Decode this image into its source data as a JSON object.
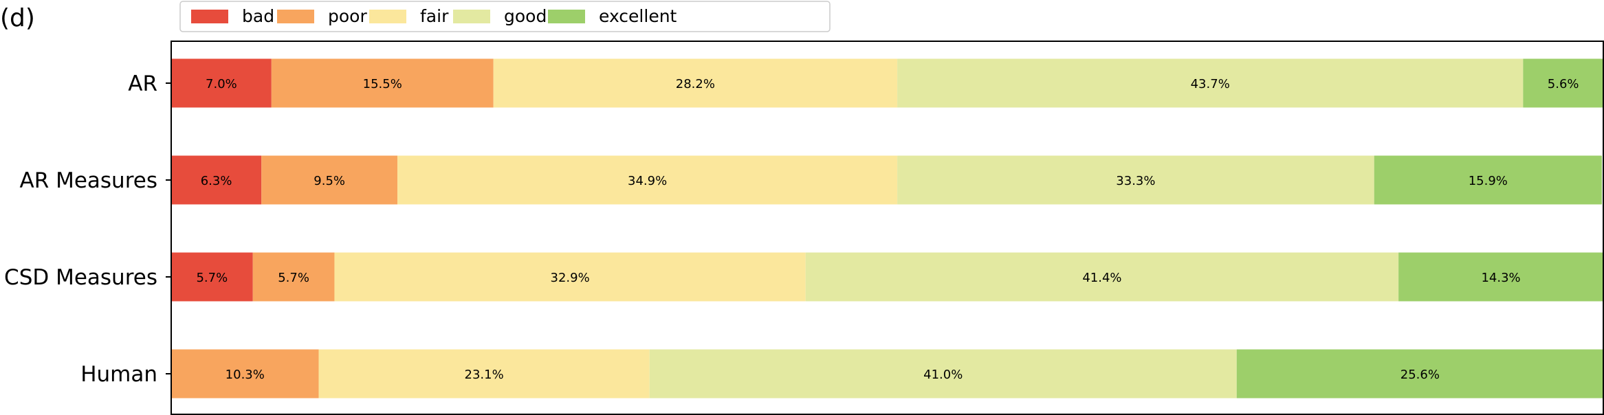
{
  "panel_label": "(d)",
  "chart_data": {
    "type": "bar",
    "orientation": "horizontal",
    "stacked": true,
    "normalized_percent": true,
    "xlim": [
      0,
      100
    ],
    "legend_placement": "top",
    "categories": [
      "AR",
      "AR Measures",
      "CSD Measures",
      "Human"
    ],
    "series": [
      {
        "name": "bad",
        "color": "#e74c3c",
        "values": [
          7.0,
          6.3,
          5.7,
          0
        ],
        "labels": [
          "7.0%",
          "6.3%",
          "5.7%",
          ""
        ]
      },
      {
        "name": "poor",
        "color": "#f8a55e",
        "values": [
          15.5,
          9.5,
          5.7,
          10.3
        ],
        "labels": [
          "15.5%",
          "9.5%",
          "5.7%",
          "10.3%"
        ]
      },
      {
        "name": "fair",
        "color": "#fbe79c",
        "values": [
          28.2,
          34.9,
          32.9,
          23.1
        ],
        "labels": [
          "28.2%",
          "34.9%",
          "32.9%",
          "23.1%"
        ]
      },
      {
        "name": "good",
        "color": "#e3e9a1",
        "values": [
          43.7,
          33.3,
          41.4,
          41.0
        ],
        "labels": [
          "43.7%",
          "33.3%",
          "41.4%",
          "41.0%"
        ]
      },
      {
        "name": "excellent",
        "color": "#9dcf6a",
        "values": [
          5.6,
          15.9,
          14.3,
          25.6
        ],
        "labels": [
          "5.6%",
          "15.9%",
          "14.3%",
          "25.6%"
        ]
      }
    ]
  }
}
